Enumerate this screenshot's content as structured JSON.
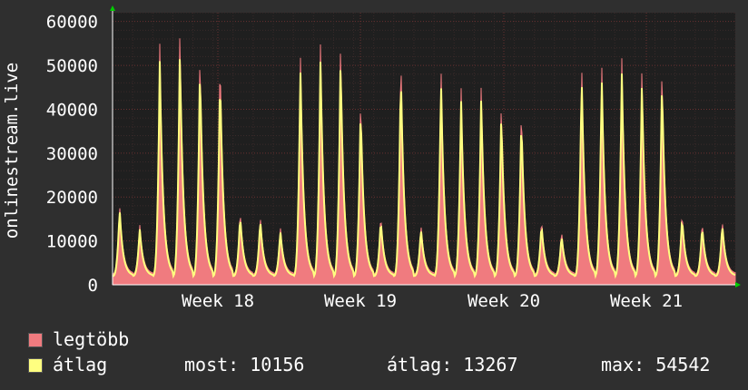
{
  "chart_data": {
    "type": "area",
    "ylabel": "onlinestream.live",
    "ylim": [
      0,
      62000
    ],
    "yticks": [
      0,
      10000,
      20000,
      30000,
      40000,
      50000,
      60000
    ],
    "ytick_labels": [
      "0",
      "10000",
      "20000",
      "30000",
      "40000",
      "50000",
      "60000"
    ],
    "xtick_labels": [
      "Week 18",
      "Week 19",
      "Week 20",
      "Week 21"
    ],
    "grid": true,
    "colors": {
      "background": "#2f2f2f",
      "plot": "#1f1f1f",
      "max_series": "#f07b7f",
      "avg_series": "#ffff80",
      "grid": "#5a2a2a",
      "axis": "#ffffff",
      "arrow": "#00cc00"
    },
    "series": [
      {
        "name": "legtöbb",
        "color": "#f07b7f",
        "daily_peaks": [
          18500,
          14000,
          55000,
          59000,
          54000,
          53000,
          17000,
          16000,
          13500,
          53000,
          55500,
          56000,
          43500,
          16000,
          53500,
          14000,
          50500,
          45500,
          46000,
          42000,
          41000,
          15000,
          12500,
          52000,
          51500,
          52000,
          50000,
          50500,
          16500,
          14500,
          15000
        ]
      },
      {
        "name": "átlag",
        "color": "#ffff80",
        "daily_peaks": [
          17500,
          13000,
          51000,
          54000,
          50500,
          49000,
          16000,
          15000,
          12500,
          49500,
          51500,
          52000,
          41000,
          15000,
          49500,
          13000,
          47000,
          42500,
          43000,
          39500,
          38500,
          14000,
          11500,
          48500,
          48000,
          48500,
          46500,
          47000,
          15500,
          13500,
          14000
        ]
      }
    ]
  },
  "legend": {
    "max_label": "legtöbb",
    "avg_label": "átlag",
    "now_text": "most: 10156",
    "avg_text": "átlag: 13267",
    "max_text": "max: 54542"
  }
}
